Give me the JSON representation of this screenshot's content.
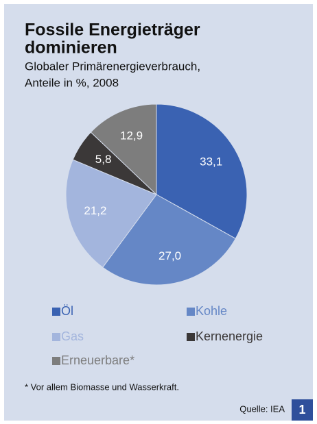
{
  "chart_data": {
    "type": "pie",
    "title": [
      "Fossile Energieträger",
      "dominieren"
    ],
    "subtitle": [
      "Globaler Primärenergieverbrauch,",
      "Anteile in %, 2008"
    ],
    "categories": [
      "Öl",
      "Kohle",
      "Gas",
      "Kernenergie",
      "Erneuerbare*"
    ],
    "values": [
      33.1,
      27.0,
      21.2,
      5.8,
      12.9
    ],
    "value_labels": [
      "33,1",
      "27,0",
      "21,2",
      "5,8",
      "12,9"
    ],
    "colors": [
      "#3a62b2",
      "#6587c6",
      "#a3b5dd",
      "#3b3838",
      "#7d7d7d"
    ],
    "footnote": "* Vor allem Biomasse und Wasserkraft.",
    "source": "Quelle: IEA",
    "badge": "1"
  }
}
